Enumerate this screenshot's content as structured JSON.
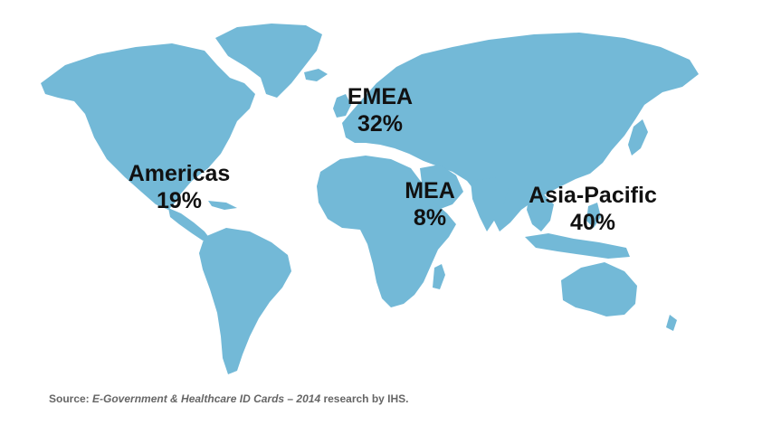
{
  "map": {
    "regions": [
      {
        "id": "americas",
        "name": "Americas",
        "percent": "19%"
      },
      {
        "id": "emea",
        "name": "EMEA",
        "percent": "32%"
      },
      {
        "id": "mea",
        "name": "MEA",
        "percent": "8%"
      },
      {
        "id": "asia-pacific",
        "name": "Asia-Pacific",
        "percent": "40%"
      }
    ],
    "land_color": "#73b9d7",
    "label_color": "#111111"
  },
  "source": {
    "prefix": "Source: ",
    "title": "E-Government & Healthcare ID Cards",
    "dash": " – ",
    "year": "2014",
    "suffix": " research by IHS."
  }
}
